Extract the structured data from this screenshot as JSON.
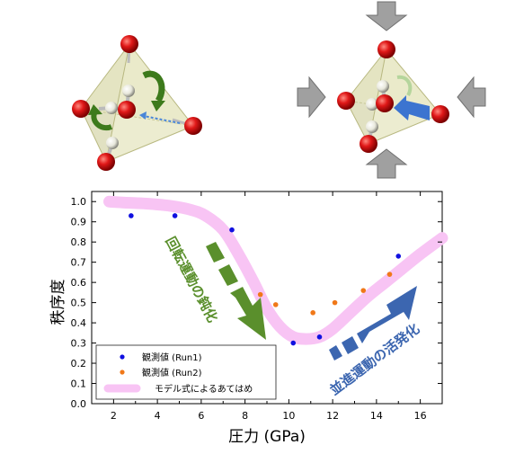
{
  "colors": {
    "run1": "#1010e0",
    "run2": "#f07818",
    "model": "#f8c4f4",
    "deactivation": "#5a8f2c",
    "activation": "#3c66b0",
    "oxygen": "#d81010",
    "hydrogen": "#f0f0e6",
    "tetrahedron": "#d8d8a0",
    "pressure_arrow": "#a0a0a0"
  },
  "icons": {
    "left_molecule": "tetrahedron-molecule-icon",
    "right_molecule": "compressed-tetrahedron-molecule-icon",
    "rotation": "rotation-arrow-icon",
    "pressure": "pressure-arrow-icon"
  },
  "chart_data": {
    "type": "scatter",
    "xlabel": "圧力 (GPa)",
    "ylabel": "秩序度",
    "xlim": [
      1,
      17
    ],
    "ylim": [
      0.0,
      1.05
    ],
    "xticks": [
      "2",
      "4",
      "6",
      "8",
      "10",
      "12",
      "14",
      "16"
    ],
    "yticks": [
      "0.0",
      "0.1",
      "0.2",
      "0.3",
      "0.4",
      "0.5",
      "0.6",
      "0.7",
      "0.8",
      "0.9",
      "1.0"
    ],
    "grid": false,
    "legend_position": "bottom-left",
    "series": [
      {
        "name": "観測値 (Run1)",
        "kind": "points",
        "x": [
          2.8,
          4.8,
          7.4,
          10.2,
          11.4,
          15.0
        ],
        "y": [
          0.93,
          0.93,
          0.86,
          0.3,
          0.33,
          0.73
        ]
      },
      {
        "name": "観測値 (Run2)",
        "kind": "points",
        "x": [
          8.7,
          9.4,
          11.1,
          12.1,
          13.4,
          14.6
        ],
        "y": [
          0.54,
          0.49,
          0.45,
          0.5,
          0.56,
          0.64
        ]
      },
      {
        "name": "モデル式によるあてはめ",
        "kind": "line",
        "x": [
          1.8,
          2.5,
          3.5,
          4.5,
          5.5,
          6.2,
          7.0,
          7.7,
          8.4,
          9.0,
          9.6,
          10.2,
          10.8,
          11.4,
          12.0,
          12.8,
          13.6,
          14.4,
          15.2,
          16.0,
          17.0
        ],
        "y": [
          1.0,
          0.995,
          0.99,
          0.98,
          0.96,
          0.93,
          0.86,
          0.74,
          0.6,
          0.47,
          0.38,
          0.33,
          0.32,
          0.33,
          0.37,
          0.45,
          0.53,
          0.6,
          0.67,
          0.74,
          0.82
        ]
      }
    ],
    "annotations": [
      {
        "text": "回転運動の鈍化"
      },
      {
        "text": "並進運動の活発化"
      }
    ]
  }
}
